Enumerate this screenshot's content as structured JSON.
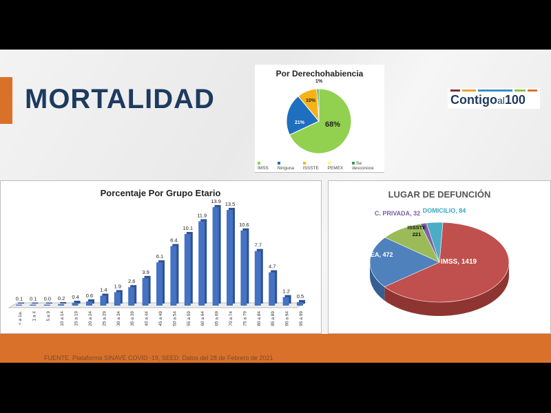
{
  "title": "MORTALIDAD",
  "logo": {
    "text": "Contigo",
    "text2": "al",
    "text3": "100"
  },
  "colors": {
    "orange": "#d9712b",
    "navy": "#1d3a5f"
  },
  "chart_data": [
    {
      "type": "pie",
      "title": "Por Derechohabiencia",
      "categories": [
        "IMSS",
        "Ninguna",
        "ISSSTE",
        "PEMEX",
        "Se desconoce"
      ],
      "values": [
        68,
        21,
        10,
        0,
        1
      ],
      "labels": [
        "68%",
        "21%",
        "10%",
        "",
        "1%"
      ],
      "colors": [
        "#92d050",
        "#1f6fc0",
        "#f6b216",
        "#ffff66",
        "#2e9e5a"
      ],
      "legend": "bottom"
    },
    {
      "type": "bar",
      "title": "Porcentaje Por Grupo Etario",
      "categories": [
        "< a 1a.",
        "1 a 4",
        "5 a 9",
        "10 a 14",
        "15 a 19",
        "20 a 24",
        "25 a 29",
        "30 a 34",
        "35 a 39",
        "40 a 44",
        "45 a 49",
        "50 a 54",
        "55 a 59",
        "60 a 64",
        "65 a 69",
        "70 a 74",
        "75 a 79",
        "80 a 84",
        "85 a 89",
        "90 a 94",
        "95 a 99"
      ],
      "values": [
        0.1,
        0.1,
        0.0,
        0.2,
        0.4,
        0.6,
        1.4,
        1.9,
        2.6,
        3.9,
        6.1,
        8.4,
        10.1,
        11.9,
        13.9,
        13.5,
        10.6,
        7.7,
        4.7,
        1.2,
        0.5
      ],
      "value_labels": [
        "0.1",
        "0.1",
        "0.0",
        "0.2",
        "0.4",
        "0.6",
        "1.4",
        "1.9",
        "2.6",
        "3.9",
        "6.1",
        "8.4",
        "10.1",
        "11.9",
        "13.9",
        "13.5",
        "10.6",
        "7.7",
        "4.7",
        "1.2",
        "0.5"
      ],
      "ylim": [
        0,
        15
      ],
      "color": "#4472c4"
    },
    {
      "type": "pie",
      "title": "LUGAR DE DEFUNCIÓN",
      "categories": [
        "IMSS",
        "ISSEA",
        "ISSSTE",
        "C. PRIVADA",
        "DOMICILIO"
      ],
      "values": [
        1419,
        472,
        221,
        32,
        84
      ],
      "labels": [
        "IMSS, 1419",
        "ISSEA, 472",
        "ISSSTE 221",
        "C. PRIVADA, 32",
        "DOMICILIO, 84"
      ],
      "colors": [
        "#c0504d",
        "#4f81bd",
        "#9bbb59",
        "#8064a2",
        "#4bacc6"
      ]
    }
  ],
  "source": "FUENTE. Plataforma SINAVE COVID -19, SEED. Datos del 28 de Febrero de 2021"
}
